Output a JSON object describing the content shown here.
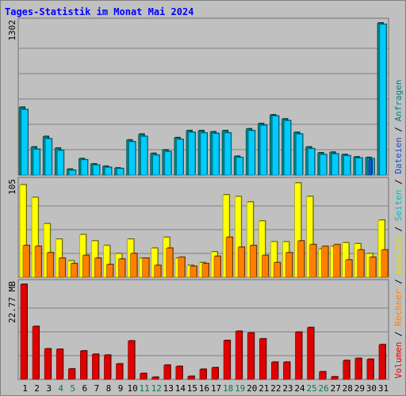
{
  "chart_data": {
    "type": "bar",
    "title": "Tages-Statistik im Monat Mai 2024",
    "categories": [
      "1",
      "2",
      "3",
      "4",
      "5",
      "6",
      "7",
      "8",
      "9",
      "10",
      "11",
      "12",
      "13",
      "14",
      "15",
      "16",
      "17",
      "18",
      "19",
      "20",
      "21",
      "22",
      "23",
      "24",
      "25",
      "26",
      "27",
      "28",
      "29",
      "30",
      "31"
    ],
    "weekend_days": [
      "4",
      "5",
      "11",
      "12",
      "18",
      "19",
      "25",
      "26"
    ],
    "panels": [
      {
        "name": "top",
        "ymax_label": "1302",
        "ylim": [
          0,
          1302
        ],
        "series": [
          {
            "name": "Anfragen",
            "color": "#008080",
            "values": [
              580,
              240,
              330,
              230,
              50,
              140,
              95,
              75,
              60,
              300,
              350,
              185,
              215,
              320,
              380,
              380,
              370,
              380,
              160,
              395,
              440,
              515,
              480,
              365,
              240,
              190,
              195,
              175,
              155,
              150,
              1302
            ]
          },
          {
            "name": "Dateien",
            "color": "#00ccff",
            "values": [
              560,
              220,
              310,
              210,
              40,
              130,
              85,
              65,
              55,
              285,
              330,
              170,
              200,
              305,
              365,
              360,
              355,
              360,
              150,
              380,
              425,
              505,
              465,
              350,
              225,
              175,
              180,
              165,
              145,
              140,
              1290
            ]
          },
          {
            "name": "Seiten",
            "color": "#1a4fc4",
            "values": [
              0,
              0,
              0,
              0,
              0,
              0,
              0,
              0,
              0,
              0,
              0,
              0,
              0,
              0,
              0,
              0,
              0,
              0,
              0,
              0,
              0,
              0,
              0,
              0,
              0,
              0,
              0,
              0,
              0,
              130,
              0
            ]
          }
        ]
      },
      {
        "name": "middle",
        "ymax_label": "105",
        "ylim": [
          0,
          105
        ],
        "series": [
          {
            "name": "Besuche",
            "color": "#ffff00",
            "values": [
              102,
              88,
              59,
              42,
              18,
              47,
              40,
              35,
              26,
              42,
              21,
              32,
              44,
              21,
              13,
              16,
              28,
              91,
              89,
              83,
              62,
              39,
              39,
              104,
              89,
              31,
              34,
              38,
              37,
              26,
              63
            ]
          },
          {
            "name": "Rechner",
            "color": "#ff8000",
            "values": [
              35,
              34,
              27,
              21,
              15,
              24,
              21,
              14,
              20,
              26,
              21,
              13,
              32,
              22,
              12,
              15,
              23,
              44,
              33,
              35,
              24,
              16,
              27,
              40,
              36,
              34,
              36,
              19,
              30,
              22,
              30
            ]
          }
        ]
      },
      {
        "name": "bottom",
        "ymax_label": "22.77 MB",
        "ylim": [
          0,
          22.77
        ],
        "series": [
          {
            "name": "Volumen",
            "color": "#e00000",
            "values": [
              22.77,
              12.67,
              7.3,
              7.2,
              2.5,
              6.8,
              6.0,
              5.8,
              3.7,
              9.2,
              1.4,
              0.5,
              3.4,
              3.1,
              0.7,
              2.4,
              2.8,
              9.3,
              11.5,
              11.1,
              9.7,
              4.1,
              4.1,
              11.3,
              12.4,
              1.8,
              0.6,
              4.5,
              5.0,
              4.8,
              8.3
            ]
          }
        ]
      }
    ],
    "legend": {
      "placement": "right-vertical",
      "items": [
        {
          "label": "Volumen",
          "color": "#e00000"
        },
        {
          "label": "Rechner",
          "color": "#ff8000"
        },
        {
          "label": "Besuche",
          "color": "#e0e000"
        },
        {
          "label": "Seiten",
          "color": "#00c0c0"
        },
        {
          "label": "Dateien",
          "color": "#1a4fc4"
        },
        {
          "label": "Anfragen",
          "color": "#008080"
        }
      ],
      "separator": " / "
    },
    "grid": true
  }
}
